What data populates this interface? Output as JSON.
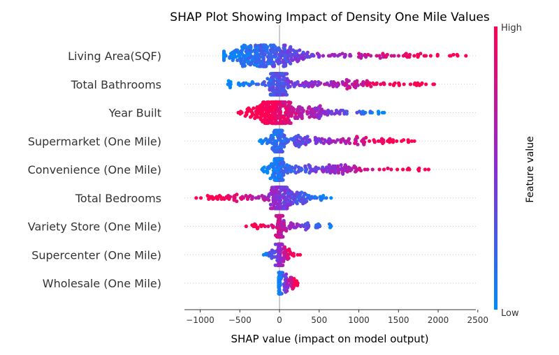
{
  "chart_data": {
    "type": "scatter",
    "subtype": "shap-beeswarm",
    "title": "SHAP Plot Showing Impact of Density One Mile Values",
    "xlabel": "SHAP value (impact on model output)",
    "ylabel": "",
    "xlim": [
      -1200,
      2550
    ],
    "xticks": [
      -1000,
      -500,
      0,
      500,
      1000,
      1500,
      2000,
      2500
    ],
    "xtick_labels": [
      "−1000",
      "−500",
      "0",
      "500",
      "1000",
      "1500",
      "2000",
      "2500"
    ],
    "grid": false,
    "colorbar": {
      "label": "Feature value",
      "high_label": "High",
      "low_label": "Low",
      "low_color": "#008bfb",
      "mid_color": "#8b2bd6",
      "high_color": "#ff0052"
    },
    "features": [
      {
        "name": "Living Area(SQF)",
        "min": -700,
        "max": 2350,
        "core": [
          -600,
          200
        ],
        "trend": "positive"
      },
      {
        "name": "Total Bathrooms",
        "min": -650,
        "max": 1950,
        "core": [
          -120,
          60
        ],
        "trend": "positive"
      },
      {
        "name": "Year Built",
        "min": -520,
        "max": 1320,
        "core": [
          -250,
          150
        ],
        "trend": "negative"
      },
      {
        "name": "Supermarket (One Mile)",
        "min": -250,
        "max": 1700,
        "core": [
          -60,
          30
        ],
        "trend": "positive"
      },
      {
        "name": "Convenience (One Mile)",
        "min": -220,
        "max": 1880,
        "core": [
          -60,
          30
        ],
        "trend": "positive"
      },
      {
        "name": "Total Bedrooms",
        "min": -1050,
        "max": 650,
        "core": [
          -80,
          80
        ],
        "trend": "negative"
      },
      {
        "name": "Variety Store (One Mile)",
        "min": -420,
        "max": 650,
        "core": [
          -30,
          30
        ],
        "trend": "negative"
      },
      {
        "name": "Supercenter (One Mile)",
        "min": -200,
        "max": 260,
        "core": [
          -20,
          20
        ],
        "trend": "positive"
      },
      {
        "name": "Wholesale (One Mile)",
        "min": -10,
        "max": 230,
        "core": [
          -10,
          10
        ],
        "trend": "positive"
      }
    ]
  }
}
